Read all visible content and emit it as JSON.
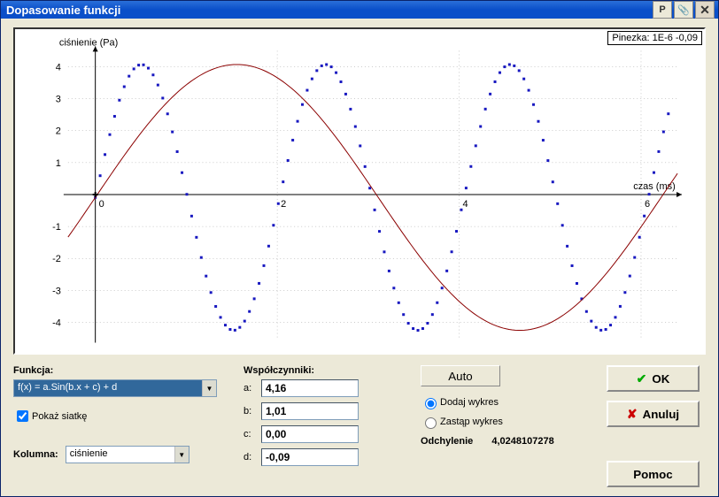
{
  "window": {
    "title": "Dopasowanie funkcji",
    "btn_p": "P",
    "btn_pin": "📌",
    "btn_close": "✕"
  },
  "chart": {
    "pin_label": "Pinezka: 1E-6 -0,09",
    "y_axis_label": "ciśnienie (Pa)",
    "x_axis_label": "czas (ms)",
    "xlim": [
      -0.3,
      6.4
    ],
    "ylim": [
      -4.5,
      4.5
    ],
    "xticks": [
      0,
      2,
      4,
      6
    ],
    "yticks": [
      -4,
      -3,
      -2,
      -1,
      1,
      2,
      3,
      4
    ],
    "grid_color": "#aaaaaa",
    "axis_color": "#000000",
    "background_color": "#ffffff",
    "data_color": "#1818c0",
    "fit_color": "#8b0000",
    "scatter_msize": 3,
    "data": {
      "type": "scatter",
      "amplitude": 4.16,
      "frequency": 3.1,
      "phase": 0,
      "offset": -0.09,
      "npoints": 120,
      "xstart": 0,
      "xend": 6.3
    },
    "fit": {
      "type": "line",
      "a": 4.16,
      "b": 1.01,
      "c": 0.0,
      "d": -0.09,
      "xstart": -0.3,
      "xend": 6.4,
      "npoints": 200
    }
  },
  "controls": {
    "funkcja_label": "Funkcja:",
    "funkcja_value": "f(x) = a.Sin(b.x + c) + d",
    "pokaz_siatke": "Pokaż siatkę",
    "pokaz_checked": true,
    "kolumna_label": "Kolumna:",
    "kolumna_value": "ciśnienie",
    "wspol_label": "Współczynniki:",
    "coef_a_lbl": "a:",
    "coef_a": "4,16",
    "coef_b_lbl": "b:",
    "coef_b": "1,01",
    "coef_c_lbl": "c:",
    "coef_c": "0,00",
    "coef_d_lbl": "d:",
    "coef_d": "-0,09",
    "auto_btn": "Auto",
    "radio_dodaj": "Dodaj wykres",
    "radio_zastap": "Zastąp wykres",
    "radio_selected": "dodaj",
    "odchylenie_label": "Odchylenie",
    "odchylenie_value": "4,0248107278",
    "ok_btn": "OK",
    "anuluj_btn": "Anuluj",
    "pomoc_btn": "Pomoc"
  }
}
